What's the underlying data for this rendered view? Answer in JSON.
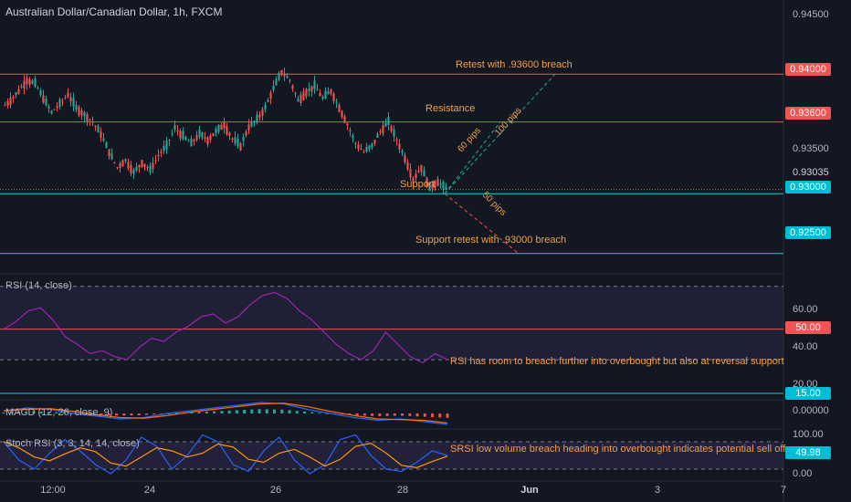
{
  "header": {
    "title": "Australian Dollar/Canadian Dollar, 1h, FXCM"
  },
  "colors": {
    "background": "#131722",
    "up": "#26a69a",
    "down": "#ef5350",
    "resistance": "#f05454",
    "support": "#26c6da",
    "annotation": "#f0a050",
    "rsi": "#9c27b0",
    "macd": "#2962ff",
    "signal": "#ff6d00",
    "stoch_k": "#2962ff",
    "stoch_d": "#ff9800"
  },
  "price_axis": {
    "ticks": [
      "0.94500",
      "0.93500",
      "0.93035"
    ],
    "tags": [
      {
        "label": "0.94000",
        "value": 0.94,
        "color": "#f05454"
      },
      {
        "label": "0.93600",
        "value": 0.936,
        "color": "#f05454"
      },
      {
        "label": "0.93000",
        "value": 0.93,
        "color": "#00bcd4"
      },
      {
        "label": "0.92500",
        "value": 0.925,
        "color": "#00bcd4"
      }
    ]
  },
  "annotations": {
    "retest": "Retest with .93600 breach",
    "resistance": "Resistance",
    "support": "Support",
    "support_retest": "Support retest with .93000 breach",
    "pips_60": "60 pips",
    "pips_100": "100 pips",
    "pips_50": "50 pips",
    "rsi_note": "RSI has room to breach further into overbought but also at reversal support",
    "stoch_note": "SRSI low volume breach heading into overbought indicates potential sell off"
  },
  "rsi_panel": {
    "label": "RSI (14, close)",
    "ticks": [
      "60.00",
      "40.00",
      "20.00"
    ],
    "tags": [
      {
        "label": "50.00",
        "color": "#f05454"
      },
      {
        "label": "15.00",
        "color": "#00bcd4"
      }
    ]
  },
  "macd_panel": {
    "label": "MACD (12, 26, close, 9)",
    "ticks": [
      "0.00000"
    ]
  },
  "stoch_panel": {
    "label": "Stoch RSI (3, 3, 14, 14, close)",
    "ticks": [
      "100.00",
      "0.00"
    ],
    "tag": {
      "label": "49.98",
      "color": "#00bcd4"
    }
  },
  "time_axis": [
    "12:00",
    "24",
    "26",
    "28",
    "Jun",
    "3",
    "7"
  ],
  "chart_data": {
    "type": "candlestick",
    "title": "Australian Dollar/Canadian Dollar, 1h, FXCM",
    "y_range": [
      0.9233,
      0.9462
    ],
    "horizontal_levels": [
      0.94,
      0.936,
      0.93,
      0.925
    ],
    "last_price": 0.93035,
    "close_path": [
      0.9378,
      0.9386,
      0.9395,
      0.9392,
      0.938,
      0.9368,
      0.9375,
      0.9383,
      0.9372,
      0.9366,
      0.936,
      0.935,
      0.9335,
      0.9322,
      0.9328,
      0.9318,
      0.9326,
      0.932,
      0.9332,
      0.934,
      0.9355,
      0.9348,
      0.9342,
      0.935,
      0.9345,
      0.9352,
      0.9358,
      0.9346,
      0.934,
      0.9356,
      0.9362,
      0.9372,
      0.9388,
      0.9402,
      0.9395,
      0.9378,
      0.9385,
      0.939,
      0.938,
      0.9386,
      0.9372,
      0.9358,
      0.9342,
      0.9335,
      0.934,
      0.9352,
      0.936,
      0.9345,
      0.933,
      0.9312,
      0.9322,
      0.9305,
      0.931,
      0.9304
    ],
    "rsi": [
      50,
      55,
      62,
      64,
      56,
      45,
      40,
      34,
      36,
      32,
      30,
      38,
      44,
      42,
      48,
      52,
      58,
      60,
      54,
      58,
      66,
      72,
      74,
      70,
      62,
      56,
      48,
      40,
      34,
      30,
      36,
      48,
      40,
      32,
      28,
      34,
      30
    ],
    "macd": [
      0.0002,
      0.0004,
      0.0003,
      0.0,
      -0.0002,
      -0.0004,
      -0.0003,
      0.0,
      0.0002,
      0.0004,
      0.0006,
      0.0008,
      0.0007,
      0.0003,
      0.0,
      -0.0003,
      -0.0005,
      -0.0004,
      -0.0006,
      -0.0008
    ],
    "stoch_rsi": [
      80,
      40,
      20,
      55,
      85,
      60,
      30,
      10,
      40,
      90,
      70,
      20,
      50,
      95,
      80,
      30,
      15,
      60,
      90,
      40,
      10,
      30,
      85,
      95,
      50,
      20,
      15,
      35,
      60,
      50
    ]
  }
}
